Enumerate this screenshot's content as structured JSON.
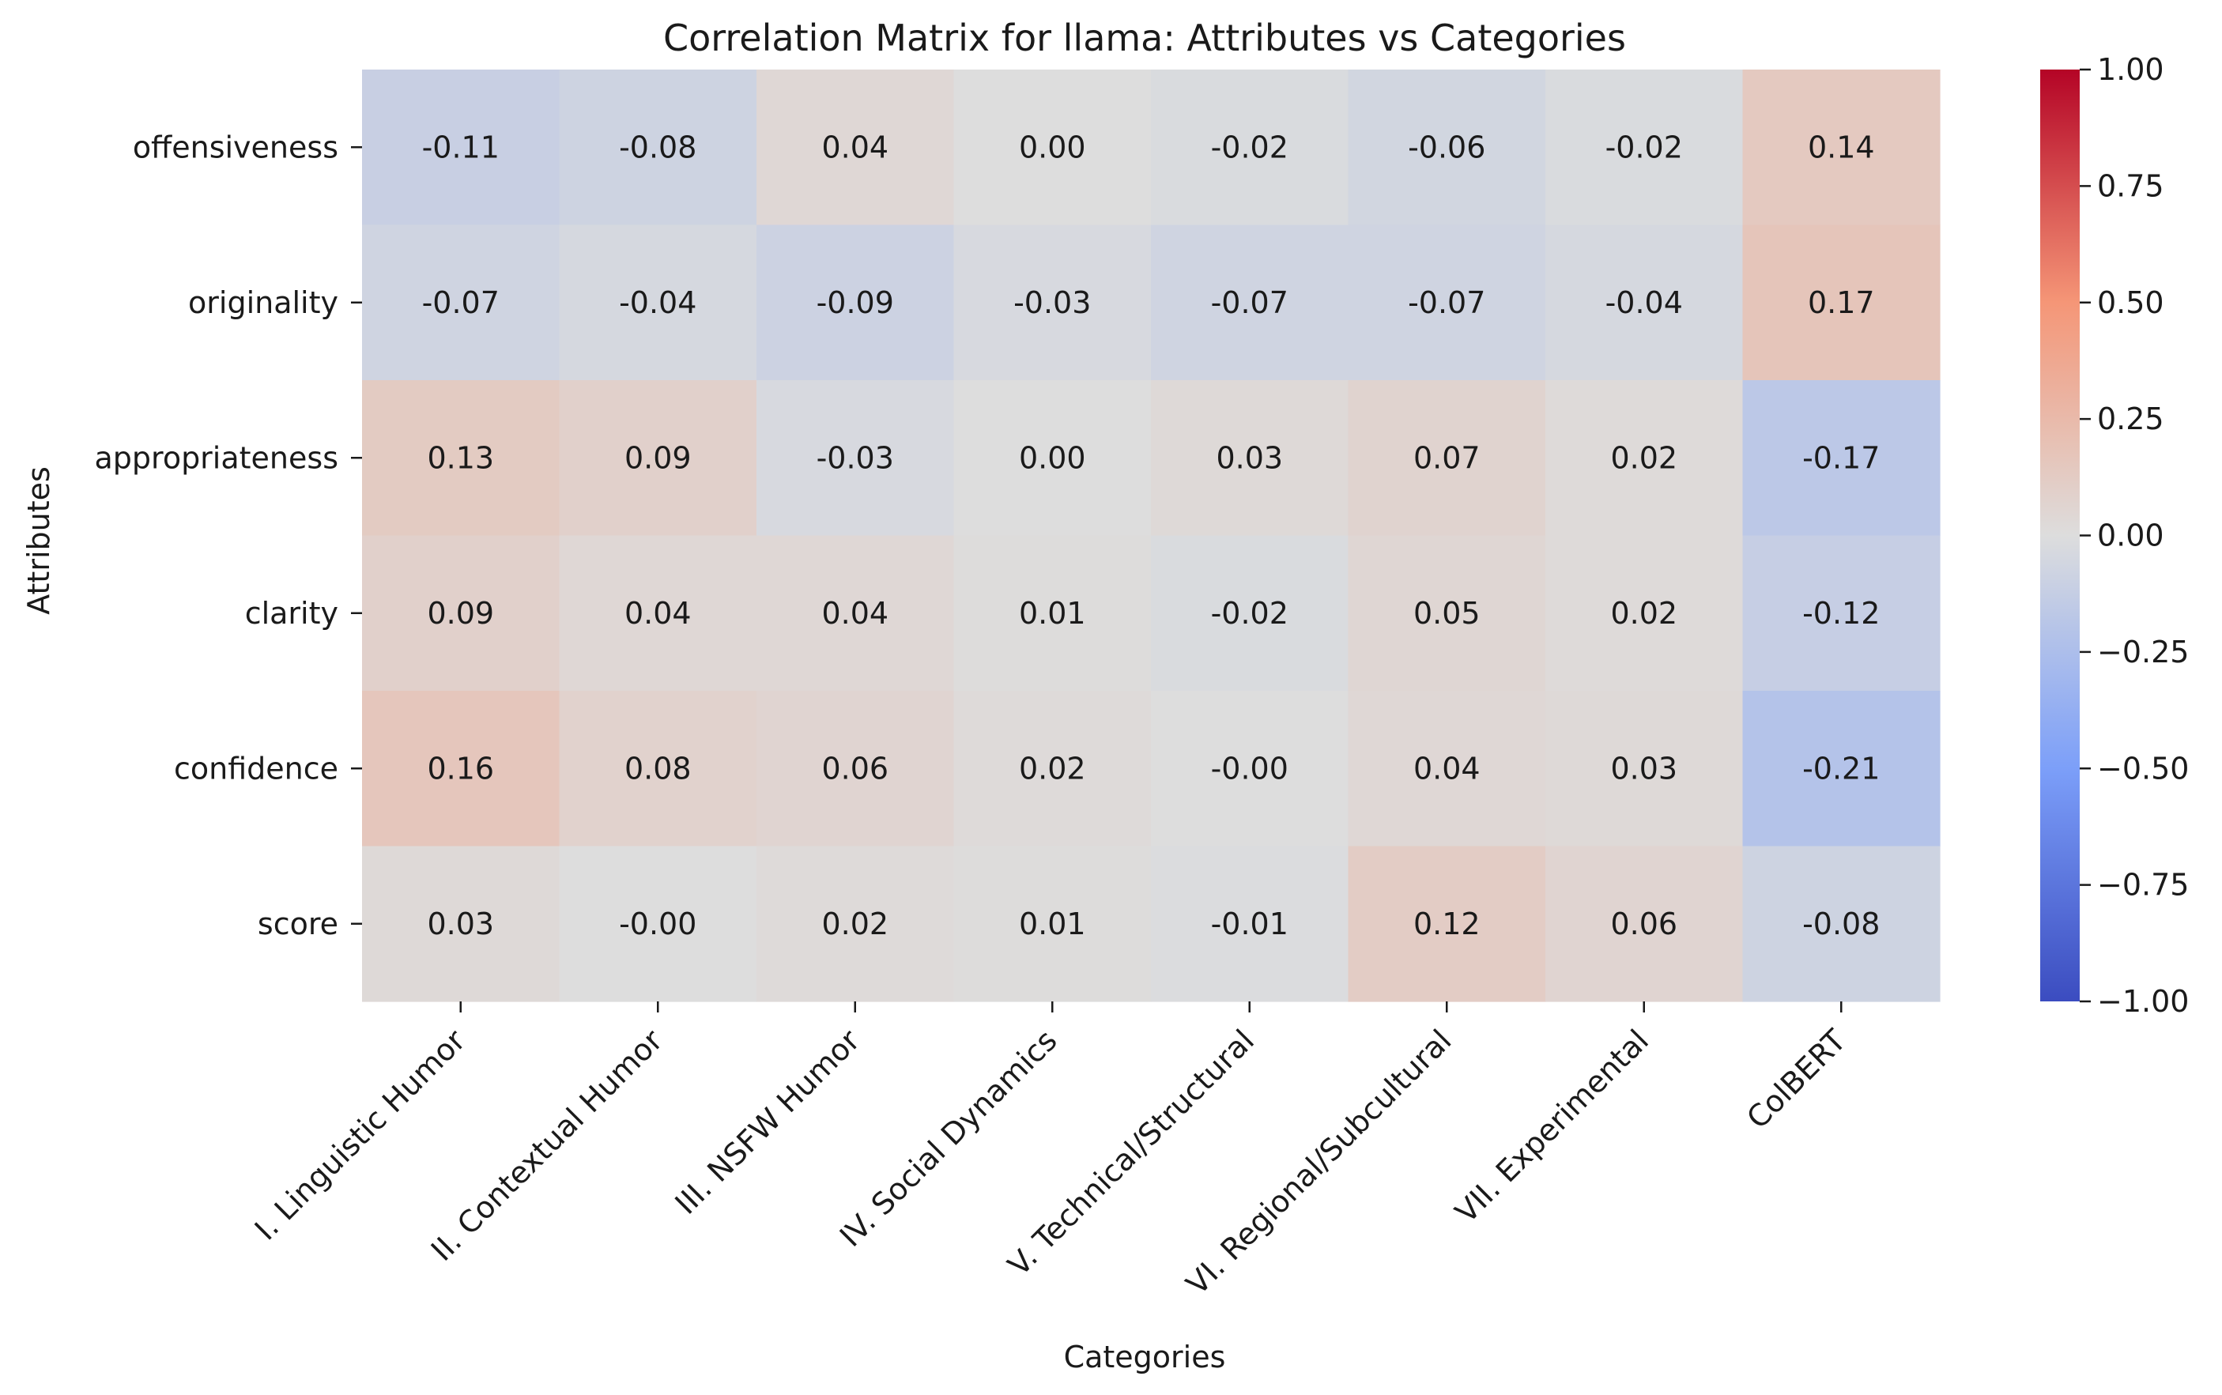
{
  "chart_data": {
    "type": "heatmap",
    "title": "Correlation Matrix for llama: Attributes vs Categories",
    "xlabel": "Categories",
    "ylabel": "Attributes",
    "rows": [
      "offensiveness",
      "originality",
      "appropriateness",
      "clarity",
      "confidence",
      "score"
    ],
    "columns": [
      "I. Linguistic Humor",
      "II. Contextual Humor",
      "III. NSFW Humor",
      "IV. Social Dynamics",
      "V. Technical/Structural",
      "VI. Regional/Subcultural",
      "VII. Experimental",
      "ColBERT"
    ],
    "values": [
      [
        -0.11,
        -0.08,
        0.04,
        0.0,
        -0.02,
        -0.06,
        -0.02,
        0.14
      ],
      [
        -0.07,
        -0.04,
        -0.09,
        -0.03,
        -0.07,
        -0.07,
        -0.04,
        0.17
      ],
      [
        0.13,
        0.09,
        -0.03,
        0.0,
        0.03,
        0.07,
        0.02,
        -0.17
      ],
      [
        0.09,
        0.04,
        0.04,
        0.01,
        -0.02,
        0.05,
        0.02,
        -0.12
      ],
      [
        0.16,
        0.08,
        0.06,
        0.02,
        -0.0,
        0.04,
        0.03,
        -0.21
      ],
      [
        0.03,
        -0.0,
        0.02,
        0.01,
        -0.01,
        0.12,
        0.06,
        -0.08
      ]
    ],
    "value_labels": [
      [
        "-0.11",
        "-0.08",
        "0.04",
        "0.00",
        "-0.02",
        "-0.06",
        "-0.02",
        "0.14"
      ],
      [
        "-0.07",
        "-0.04",
        "-0.09",
        "-0.03",
        "-0.07",
        "-0.07",
        "-0.04",
        "0.17"
      ],
      [
        "0.13",
        "0.09",
        "-0.03",
        "0.00",
        "0.03",
        "0.07",
        "0.02",
        "-0.17"
      ],
      [
        "0.09",
        "0.04",
        "0.04",
        "0.01",
        "-0.02",
        "0.05",
        "0.02",
        "-0.12"
      ],
      [
        "0.16",
        "0.08",
        "0.06",
        "0.02",
        "-0.00",
        "0.04",
        "0.03",
        "-0.21"
      ],
      [
        "0.03",
        "-0.00",
        "0.02",
        "0.01",
        "-0.01",
        "0.12",
        "0.06",
        "-0.08"
      ]
    ],
    "colormap": "coolwarm",
    "vmin": -1.0,
    "vmax": 1.0,
    "colorbar_ticks": [
      "1.00",
      "0.75",
      "0.50",
      "0.25",
      "0.00",
      "−0.25",
      "−0.50",
      "−0.75",
      "−1.00"
    ],
    "colorbar_tick_values": [
      1.0,
      0.75,
      0.5,
      0.25,
      0.0,
      -0.25,
      -0.5,
      -0.75,
      -1.0
    ],
    "grid": false,
    "colorbar_placement": "right"
  }
}
